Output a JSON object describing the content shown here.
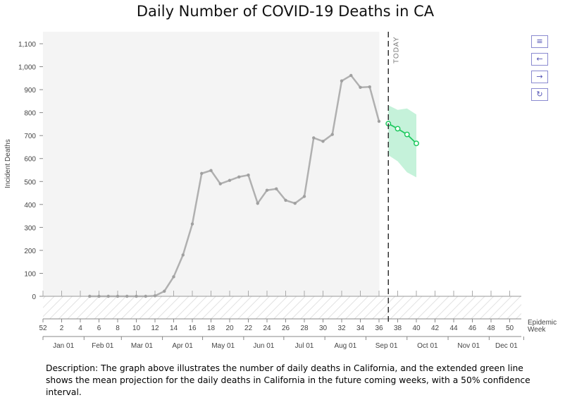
{
  "title": "Daily Number of COVID-19 Deaths in CA",
  "description": "Description: The graph above illustrates the number of daily deaths in California, and the extended green line shows the mean projection for the daily deaths  in California in the future coming weeks, with a 50% confidence interval.",
  "toolbar": [
    {
      "name": "menu-icon",
      "glyph": "≡"
    },
    {
      "name": "arrow-left-icon",
      "glyph": "←"
    },
    {
      "name": "arrow-right-icon",
      "glyph": "→"
    },
    {
      "name": "refresh-icon",
      "glyph": "↻"
    }
  ],
  "colors": {
    "observed": "#b0b0b0",
    "projection": "#1ec95f",
    "band": "#c5f2da",
    "observed_bg": "#f4f4f4"
  },
  "chart_data": {
    "type": "line",
    "ylabel": "Incident Deaths",
    "xlabel": "Epidemic Week",
    "ylim": [
      -100,
      1150
    ],
    "y_ticks": [
      0,
      100,
      200,
      300,
      400,
      500,
      600,
      700,
      800,
      900,
      1000,
      1100
    ],
    "y_tick_labels": [
      "0",
      "100",
      "200",
      "300",
      "400",
      "500",
      "600",
      "700",
      "800",
      "900",
      "1,000",
      "1,100"
    ],
    "x_index_range": [
      0,
      51.5
    ],
    "week_ticks": [
      "52",
      "2",
      "4",
      "6",
      "8",
      "10",
      "12",
      "14",
      "16",
      "18",
      "20",
      "22",
      "24",
      "26",
      "28",
      "30",
      "32",
      "34",
      "36",
      "38",
      "40",
      "42",
      "44",
      "46",
      "48",
      "50"
    ],
    "month_labels": [
      "Jan 01",
      "Feb 01",
      "Mar 01",
      "Apr 01",
      "May 01",
      "Jun 01",
      "Jul 01",
      "Aug 01",
      "Sep 01",
      "Oct 01",
      "Nov 01",
      "Dec 01"
    ],
    "today_label": "TODAY",
    "today_week": 37,
    "observed_end_week": 36,
    "series": [
      {
        "kind": "observed",
        "x": [
          5,
          6,
          7,
          8,
          9,
          10,
          11,
          12,
          13,
          14,
          15,
          16,
          17,
          18,
          19,
          20,
          21,
          22,
          23,
          24,
          25,
          26,
          27,
          28,
          29,
          30,
          31,
          32,
          33,
          34,
          35,
          36
        ],
        "values": [
          0,
          0,
          0,
          0,
          0,
          0,
          0,
          2,
          22,
          85,
          180,
          315,
          535,
          548,
          490,
          505,
          520,
          528,
          405,
          462,
          468,
          418,
          405,
          435,
          690,
          675,
          705,
          938,
          962,
          910,
          912,
          762
        ]
      },
      {
        "kind": "projection",
        "x": [
          37,
          38,
          39,
          40
        ],
        "values": [
          752,
          730,
          705,
          666
        ],
        "lower": [
          615,
          588,
          540,
          518
        ],
        "upper": [
          832,
          812,
          818,
          792
        ]
      }
    ]
  }
}
